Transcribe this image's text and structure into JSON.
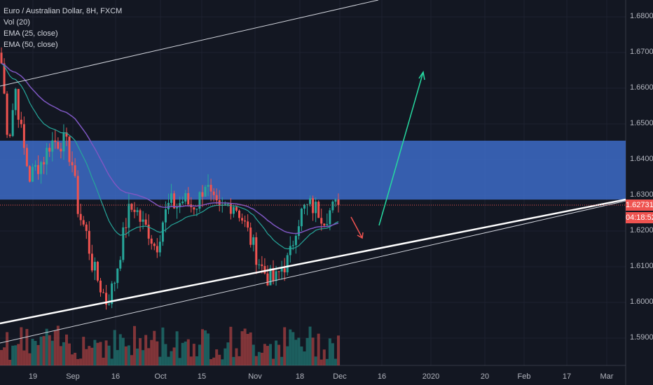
{
  "legend": {
    "title": "Euro / Australian Dollar, 8H, FXCM",
    "vol": "Vol (20)",
    "ema25": "EMA (25, close)",
    "ema50": "EMA (50, close)"
  },
  "price_tag": "1.62731",
  "countdown": "04:18:52",
  "colors": {
    "up": "#26a69a",
    "down": "#ef5350",
    "zone": "#3d6bc7",
    "ema25": "#26a69a",
    "ema50": "#7e57c2"
  },
  "chart_data": {
    "type": "candlestick",
    "title": "Euro / Australian Dollar, 8H, FXCM",
    "y_ticks": [
      "1.68000",
      "1.67000",
      "1.66000",
      "1.65000",
      "1.64000",
      "1.63000",
      "1.62000",
      "1.61000",
      "1.60000",
      "1.59000"
    ],
    "ylim": [
      1.584,
      1.686
    ],
    "x_ticks": [
      "19",
      "Sep",
      "16",
      "Oct",
      "15",
      "Nov",
      "18",
      "Dec",
      "16",
      "2020",
      "20",
      "Feb",
      "17",
      "Mar"
    ],
    "closes": [
      1.667,
      1.645,
      1.66,
      1.645,
      1.635,
      1.638,
      1.64,
      1.645,
      1.645,
      1.645,
      1.64,
      1.625,
      1.62,
      1.61,
      1.605,
      1.6,
      1.605,
      1.615,
      1.625,
      1.627,
      1.622,
      1.62,
      1.615,
      1.623,
      1.628,
      1.627,
      1.629,
      1.627,
      1.628,
      1.634,
      1.628,
      1.625,
      1.627,
      1.628,
      1.625,
      1.62,
      1.615,
      1.61,
      1.607,
      1.606,
      1.61,
      1.612,
      1.622,
      1.626,
      1.627,
      1.626,
      1.624,
      1.626,
      1.6273
    ],
    "resistance_zone": [
      1.6288,
      1.6453
    ],
    "last_price": 1.62731
  }
}
